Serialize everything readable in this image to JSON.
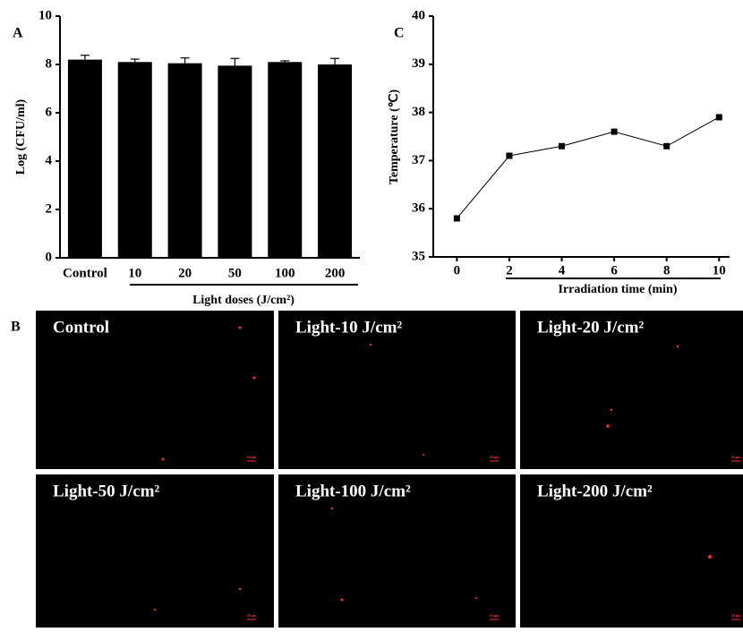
{
  "chart_data": [
    {
      "type": "bar",
      "panel_label": "A",
      "ylabel": "Log (CFU/ml)",
      "xlabel": "Light doses (J/cm²)",
      "categories": [
        "Control",
        "10",
        "20",
        "50",
        "100",
        "200"
      ],
      "values": [
        8.2,
        8.1,
        8.05,
        7.95,
        8.1,
        8.0
      ],
      "errors": [
        0.18,
        0.12,
        0.22,
        0.3,
        0.05,
        0.25
      ],
      "color": "#000000",
      "ylim": [
        0,
        10
      ],
      "yticks": [
        0,
        2,
        4,
        6,
        8,
        10
      ]
    },
    {
      "type": "line",
      "panel_label": "C",
      "ylabel": "Temperature (℃)",
      "xlabel": "Irradiation time (min)",
      "x": [
        0,
        2,
        4,
        6,
        8,
        10
      ],
      "values": [
        35.8,
        37.1,
        37.3,
        37.6,
        37.3,
        37.9
      ],
      "color": "#000000",
      "xlim": [
        -0.9,
        10.4
      ],
      "xticks": [
        0,
        2,
        4,
        6,
        8,
        10
      ],
      "ylim": [
        35,
        40
      ],
      "yticks": [
        35,
        36,
        37,
        38,
        39,
        40
      ]
    }
  ],
  "micrographs": {
    "label": "B",
    "scale_bar": "10 μm",
    "captions": [
      "Control",
      "Light-10 J/cm²",
      "Light-20 J/cm²",
      "Light-50 J/cm²",
      "Light-100 J/cm²",
      "Light-200 J/cm²"
    ]
  }
}
